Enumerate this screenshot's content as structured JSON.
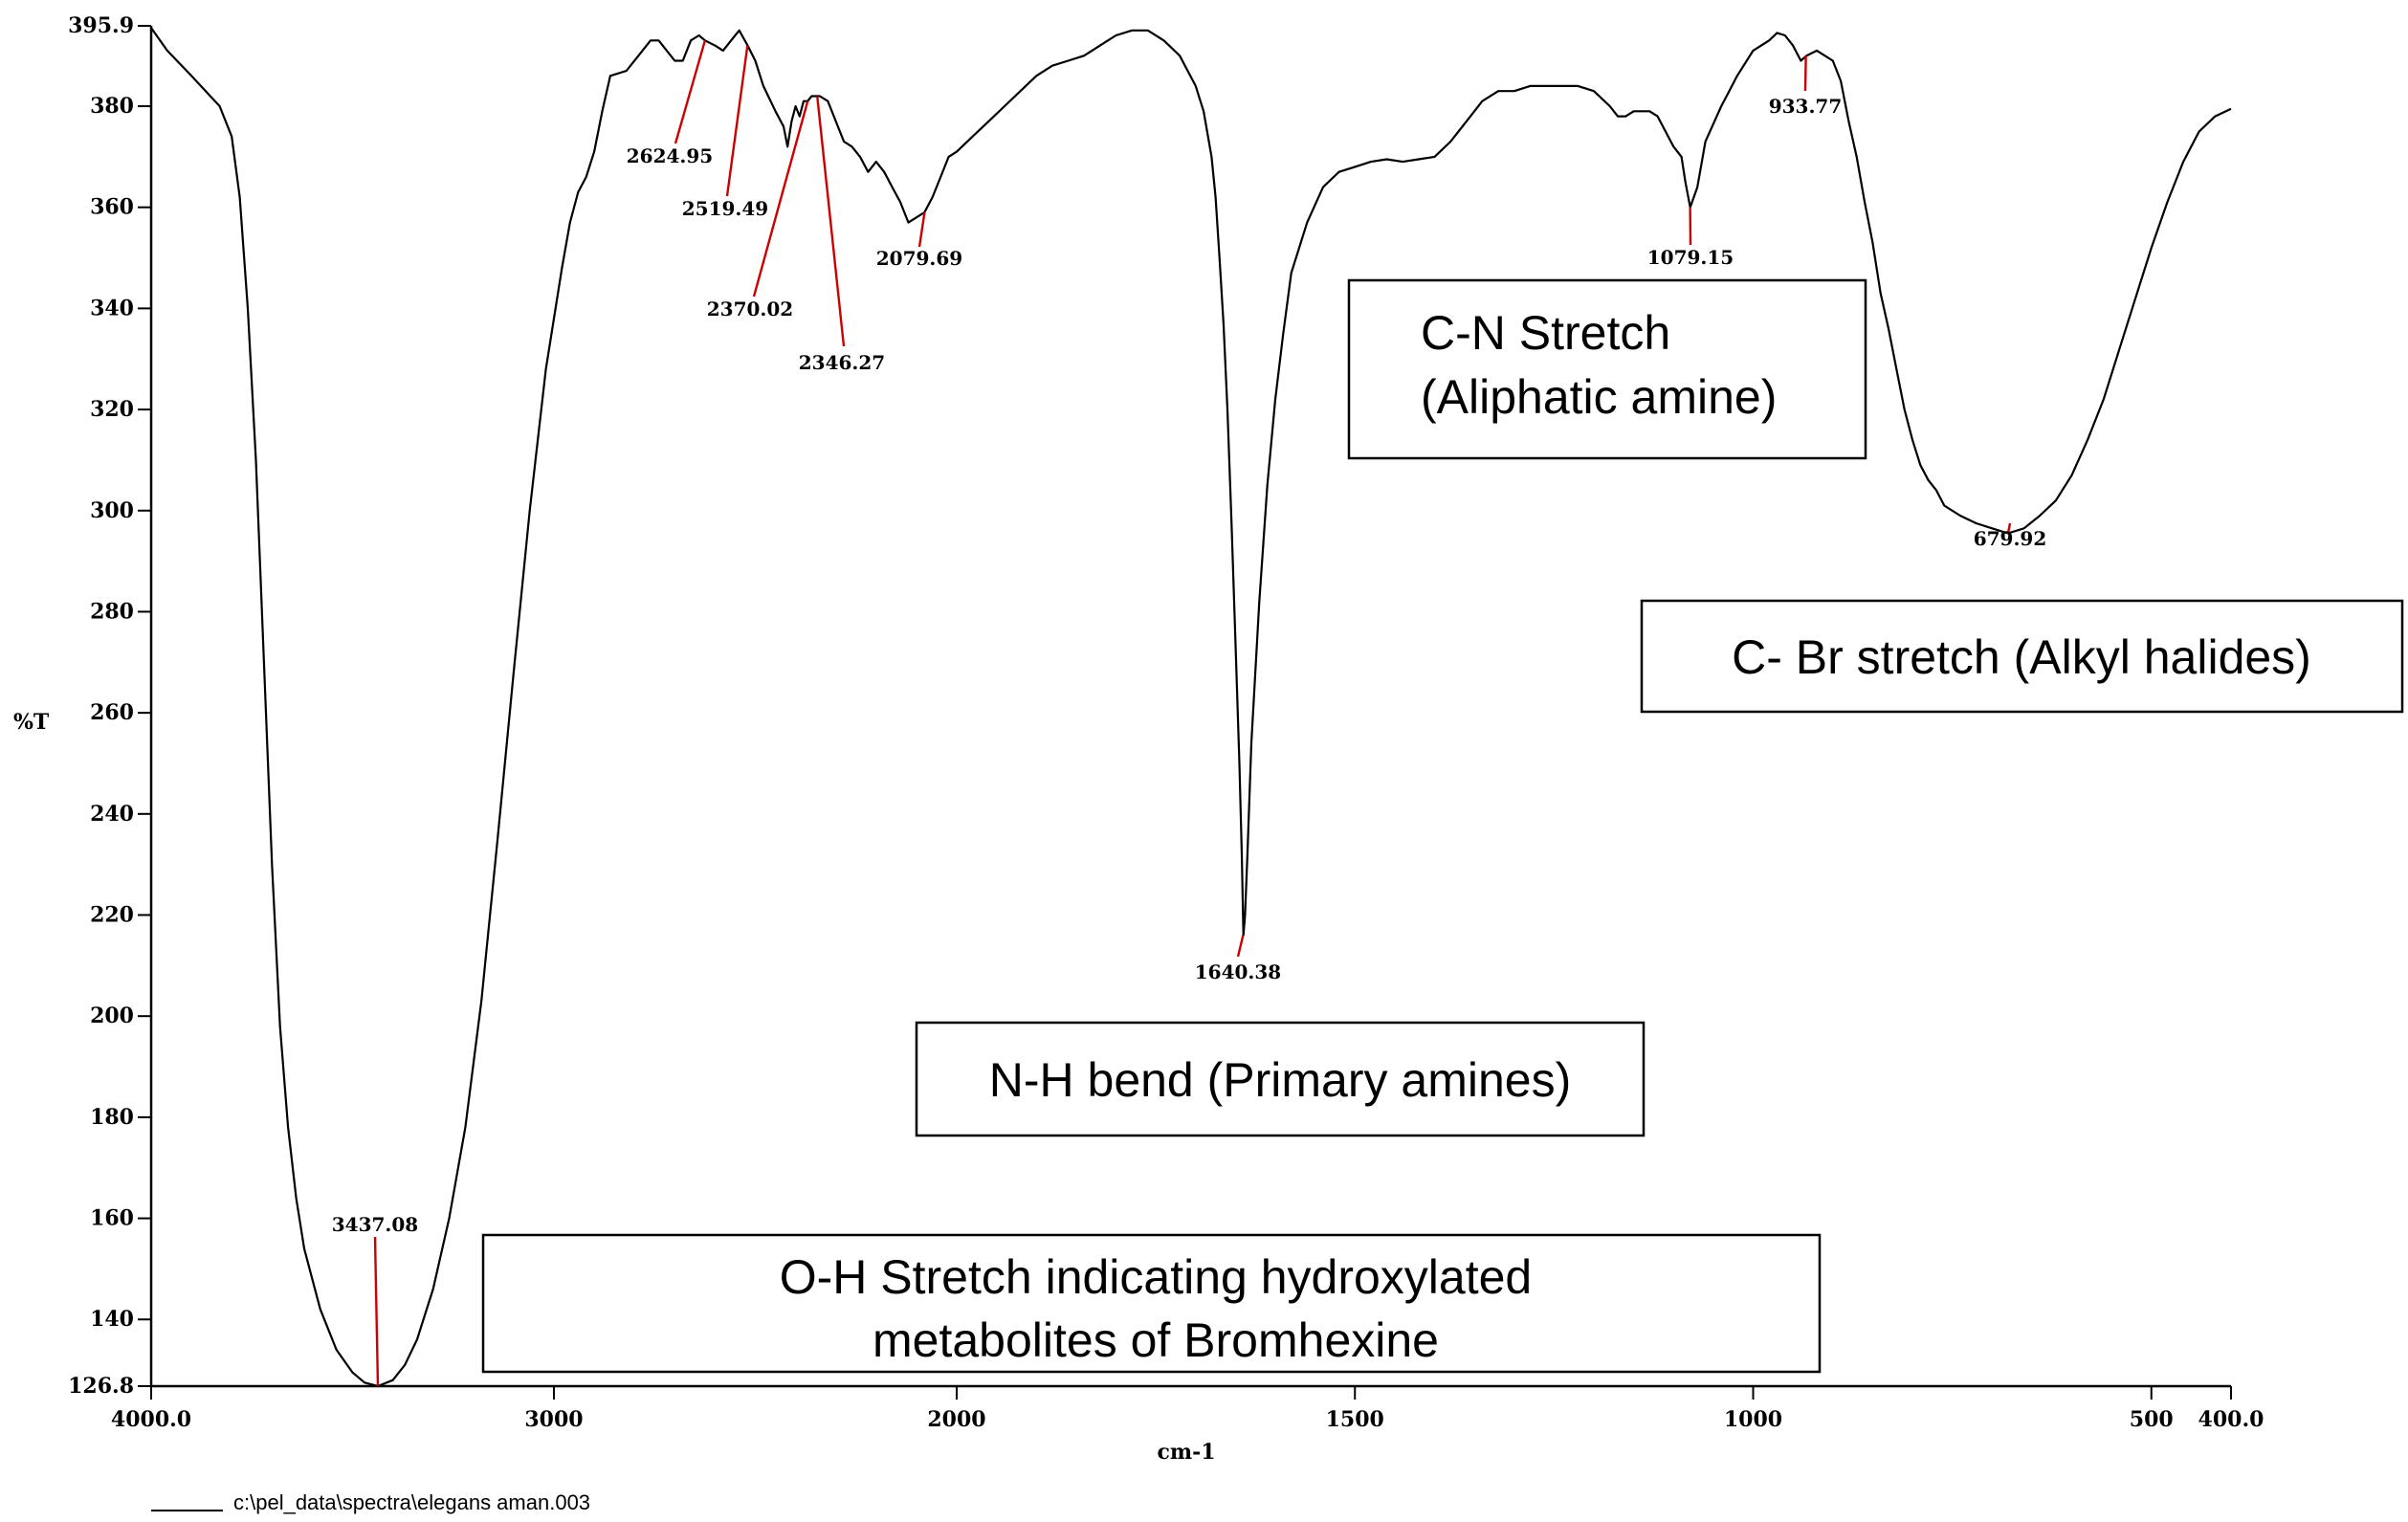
{
  "chart_data": {
    "type": "line",
    "title": "",
    "xlabel": "cm-1",
    "ylabel": "%T",
    "xlim": [
      4000.0,
      400.0
    ],
    "ylim": [
      126.8,
      395.9
    ],
    "x_reversed": true,
    "grid": false,
    "x_ticks": [
      {
        "value": 4000,
        "label": "4000.0"
      },
      {
        "value": 3000,
        "label": "3000"
      },
      {
        "value": 2000,
        "label": "2000"
      },
      {
        "value": 1500,
        "label": "1500"
      },
      {
        "value": 1000,
        "label": "1000"
      },
      {
        "value": 500,
        "label": "500"
      },
      {
        "value": 400,
        "label": "400.0"
      }
    ],
    "y_ticks": [
      {
        "value": 395.9,
        "label": "395.9"
      },
      {
        "value": 380,
        "label": "380"
      },
      {
        "value": 360,
        "label": "360"
      },
      {
        "value": 340,
        "label": "340"
      },
      {
        "value": 320,
        "label": "320"
      },
      {
        "value": 300,
        "label": "300"
      },
      {
        "value": 280,
        "label": "280"
      },
      {
        "value": 260,
        "label": "260"
      },
      {
        "value": 240,
        "label": "240"
      },
      {
        "value": 220,
        "label": "220"
      },
      {
        "value": 200,
        "label": "200"
      },
      {
        "value": 180,
        "label": "180"
      },
      {
        "value": 160,
        "label": "160"
      },
      {
        "value": 140,
        "label": "140"
      },
      {
        "value": 126.8,
        "label": "126.8"
      }
    ],
    "series": [
      {
        "color": "#000000",
        "points": [
          [
            4000,
            395.5
          ],
          [
            3960,
            391
          ],
          [
            3900,
            386
          ],
          [
            3830,
            380
          ],
          [
            3800,
            374
          ],
          [
            3780,
            362
          ],
          [
            3760,
            340
          ],
          [
            3740,
            310
          ],
          [
            3720,
            270
          ],
          [
            3700,
            230
          ],
          [
            3680,
            198
          ],
          [
            3660,
            178
          ],
          [
            3640,
            164
          ],
          [
            3620,
            154
          ],
          [
            3580,
            142
          ],
          [
            3540,
            134
          ],
          [
            3500,
            129.5
          ],
          [
            3470,
            127.5
          ],
          [
            3437,
            126.8
          ],
          [
            3400,
            128
          ],
          [
            3370,
            131
          ],
          [
            3340,
            136
          ],
          [
            3300,
            146
          ],
          [
            3260,
            160
          ],
          [
            3220,
            178
          ],
          [
            3180,
            203
          ],
          [
            3140,
            235
          ],
          [
            3100,
            268
          ],
          [
            3060,
            300
          ],
          [
            3020,
            328
          ],
          [
            2980,
            348
          ],
          [
            2960,
            357
          ],
          [
            2940,
            363
          ],
          [
            2920,
            366
          ],
          [
            2900,
            371
          ],
          [
            2880,
            379
          ],
          [
            2860,
            386
          ],
          [
            2820,
            387
          ],
          [
            2790,
            390
          ],
          [
            2760,
            393
          ],
          [
            2740,
            393
          ],
          [
            2700,
            389
          ],
          [
            2680,
            389
          ],
          [
            2660,
            393
          ],
          [
            2640,
            394
          ],
          [
            2625,
            393
          ],
          [
            2600,
            392
          ],
          [
            2580,
            391
          ],
          [
            2560,
            393
          ],
          [
            2540,
            395
          ],
          [
            2519,
            392
          ],
          [
            2500,
            389
          ],
          [
            2480,
            384
          ],
          [
            2450,
            379
          ],
          [
            2430,
            376
          ],
          [
            2420,
            372
          ],
          [
            2410,
            377
          ],
          [
            2400,
            380
          ],
          [
            2390,
            378
          ],
          [
            2380,
            381
          ],
          [
            2370,
            381
          ],
          [
            2360,
            382
          ],
          [
            2340,
            382
          ],
          [
            2320,
            381
          ],
          [
            2300,
            377
          ],
          [
            2280,
            373
          ],
          [
            2260,
            372
          ],
          [
            2240,
            370
          ],
          [
            2220,
            367
          ],
          [
            2200,
            369
          ],
          [
            2180,
            367
          ],
          [
            2160,
            364
          ],
          [
            2140,
            361
          ],
          [
            2120,
            357
          ],
          [
            2100,
            358
          ],
          [
            2080,
            359
          ],
          [
            2060,
            362
          ],
          [
            2040,
            366
          ],
          [
            2020,
            370
          ],
          [
            2000,
            371
          ],
          [
            1980,
            374
          ],
          [
            1960,
            377
          ],
          [
            1940,
            380
          ],
          [
            1920,
            383
          ],
          [
            1900,
            386
          ],
          [
            1880,
            388
          ],
          [
            1860,
            389
          ],
          [
            1840,
            390
          ],
          [
            1820,
            392
          ],
          [
            1800,
            394
          ],
          [
            1780,
            395
          ],
          [
            1760,
            395
          ],
          [
            1740,
            393
          ],
          [
            1720,
            390
          ],
          [
            1700,
            384
          ],
          [
            1690,
            379
          ],
          [
            1680,
            370
          ],
          [
            1675,
            362
          ],
          [
            1670,
            350
          ],
          [
            1665,
            337
          ],
          [
            1660,
            320
          ],
          [
            1655,
            298
          ],
          [
            1650,
            274
          ],
          [
            1645,
            250
          ],
          [
            1642,
            232
          ],
          [
            1640,
            216
          ],
          [
            1638,
            220
          ],
          [
            1635,
            232
          ],
          [
            1630,
            254
          ],
          [
            1620,
            282
          ],
          [
            1610,
            305
          ],
          [
            1600,
            322
          ],
          [
            1590,
            335
          ],
          [
            1580,
            347
          ],
          [
            1560,
            357
          ],
          [
            1540,
            364
          ],
          [
            1520,
            367
          ],
          [
            1500,
            368
          ],
          [
            1480,
            369
          ],
          [
            1460,
            369.5
          ],
          [
            1440,
            369
          ],
          [
            1420,
            369.5
          ],
          [
            1400,
            370
          ],
          [
            1380,
            373
          ],
          [
            1360,
            377
          ],
          [
            1340,
            381
          ],
          [
            1320,
            383
          ],
          [
            1300,
            383
          ],
          [
            1280,
            384
          ],
          [
            1260,
            384
          ],
          [
            1240,
            384
          ],
          [
            1220,
            384
          ],
          [
            1200,
            383
          ],
          [
            1180,
            380
          ],
          [
            1170,
            378
          ],
          [
            1160,
            378
          ],
          [
            1150,
            379
          ],
          [
            1130,
            379
          ],
          [
            1120,
            378
          ],
          [
            1110,
            375
          ],
          [
            1100,
            372
          ],
          [
            1090,
            370
          ],
          [
            1085,
            365
          ],
          [
            1079,
            360
          ],
          [
            1070,
            364
          ],
          [
            1060,
            373
          ],
          [
            1040,
            380
          ],
          [
            1030,
            383
          ],
          [
            1020,
            386
          ],
          [
            1000,
            391
          ],
          [
            980,
            393
          ],
          [
            970,
            394.5
          ],
          [
            960,
            394
          ],
          [
            950,
            392
          ],
          [
            940,
            389
          ],
          [
            933,
            390
          ],
          [
            920,
            391
          ],
          [
            910,
            390
          ],
          [
            900,
            389
          ],
          [
            890,
            385
          ],
          [
            880,
            377
          ],
          [
            870,
            370
          ],
          [
            860,
            361
          ],
          [
            850,
            353
          ],
          [
            840,
            343
          ],
          [
            830,
            336
          ],
          [
            820,
            328
          ],
          [
            810,
            320
          ],
          [
            800,
            314
          ],
          [
            790,
            309
          ],
          [
            780,
            306
          ],
          [
            770,
            304
          ],
          [
            760,
            301
          ],
          [
            740,
            299
          ],
          [
            720,
            297.5
          ],
          [
            700,
            296.5
          ],
          [
            680,
            295.5
          ],
          [
            660,
            296.5
          ],
          [
            640,
            299
          ],
          [
            620,
            302
          ],
          [
            600,
            307
          ],
          [
            580,
            314
          ],
          [
            560,
            322
          ],
          [
            540,
            332
          ],
          [
            520,
            342
          ],
          [
            500,
            352
          ],
          [
            480,
            361
          ],
          [
            460,
            369
          ],
          [
            440,
            375
          ],
          [
            420,
            378
          ],
          [
            400,
            379.5
          ]
        ]
      }
    ],
    "peaks": [
      {
        "wavenumber": 3437.08,
        "label": "3437.08",
        "y": 126.8
      },
      {
        "wavenumber": 2624.95,
        "label": "2624.95",
        "y": 393
      },
      {
        "wavenumber": 2519.49,
        "label": "2519.49",
        "y": 392
      },
      {
        "wavenumber": 2370.02,
        "label": "2370.02",
        "y": 381
      },
      {
        "wavenumber": 2346.27,
        "label": "2346.27",
        "y": 382
      },
      {
        "wavenumber": 2079.69,
        "label": "2079.69",
        "y": 359
      },
      {
        "wavenumber": 1640.38,
        "label": "1640.38",
        "y": 216
      },
      {
        "wavenumber": 1079.15,
        "label": "1079.15",
        "y": 360
      },
      {
        "wavenumber": 933.77,
        "label": "933.77",
        "y": 390
      },
      {
        "wavenumber": 679.92,
        "label": "679.92",
        "y": 295.5
      }
    ],
    "annotations": [
      {
        "lines": [
          "C-N Stretch",
          "(Aliphatic amine)"
        ]
      },
      {
        "lines": [
          "C- Br stretch (Alkyl halides)"
        ]
      },
      {
        "lines": [
          "N-H bend (Primary amines)"
        ]
      },
      {
        "lines": [
          "O-H Stretch indicating hydroxylated",
          "metabolites of Bromhexine"
        ]
      }
    ],
    "file_label": "c:\\pel_data\\spectra\\elegans aman.003",
    "colors": {
      "line": "#000000",
      "peak_marker": "#cc0000",
      "axis": "#000000"
    }
  }
}
